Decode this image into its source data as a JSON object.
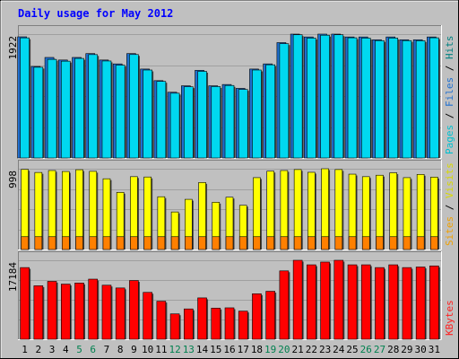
{
  "chart_data": {
    "title": "Daily usage for May 2012",
    "type": "bar",
    "categories": [
      "1",
      "2",
      "3",
      "4",
      "5",
      "6",
      "7",
      "8",
      "9",
      "10",
      "11",
      "12",
      "13",
      "14",
      "15",
      "16",
      "17",
      "18",
      "19",
      "20",
      "21",
      "22",
      "23",
      "24",
      "25",
      "26",
      "27",
      "28",
      "29",
      "30",
      "31"
    ],
    "weekend_days": [
      "5",
      "6",
      "12",
      "13",
      "19",
      "20",
      "26",
      "27"
    ],
    "panels": [
      {
        "label_parts": [
          "Pages",
          "Files",
          "Hits"
        ],
        "label_colors": [
          "#00c0d0",
          "#1f70d0",
          "#008080"
        ],
        "separator": " / ",
        "max_label": "1922",
        "max": 1922,
        "series": [
          {
            "key": "hits",
            "color": "#1f70d0",
            "values": [
              1880,
              1420,
              1560,
              1520,
              1560,
              1620,
              1520,
              1460,
              1620,
              1380,
              1200,
              1020,
              1120,
              1360,
              1120,
              1140,
              1080,
              1380,
              1460,
              1790,
              1922,
              1878,
              1922,
              1922,
              1878,
              1878,
              1834,
              1878,
              1834,
              1834,
              1878
            ]
          },
          {
            "key": "pages",
            "color": "#00d8f0",
            "values": [
              1864,
              1408,
              1530,
              1502,
              1545,
              1604,
              1505,
              1440,
              1605,
              1365,
              1188,
              1005,
              1105,
              1344,
              1108,
              1125,
              1063,
              1365,
              1446,
              1773,
              1912,
              1860,
              1905,
              1912,
              1865,
              1860,
              1821,
              1861,
              1821,
              1819,
              1865
            ]
          }
        ]
      },
      {
        "label_parts": [
          "Sites",
          "Visits"
        ],
        "label_colors": [
          "#f0a000",
          "#d8d800"
        ],
        "separator": " / ",
        "max_label": "998",
        "max": 998,
        "series": [
          {
            "key": "visits",
            "color": "#ffff00",
            "values": [
              990,
              952,
              976,
              964,
              986,
              966,
              874,
              706,
              900,
              896,
              652,
              464,
              620,
              828,
              584,
              646,
              546,
              888,
              968,
              976,
              988,
              954,
              998,
              988,
              931,
              900,
              918,
              948,
              888,
              928,
              894
            ]
          },
          {
            "key": "sites",
            "color": "#ff8000",
            "values": [
              158,
              158,
              158,
              158,
              158,
              158,
              158,
              158,
              158,
              158,
              158,
              158,
              158,
              158,
              158,
              158,
              158,
              158,
              158,
              158,
              158,
              158,
              158,
              158,
              158,
              158,
              158,
              158,
              158,
              158,
              158
            ]
          }
        ]
      },
      {
        "label_parts": [
          "KBytes"
        ],
        "label_colors": [
          "#ff2020"
        ],
        "separator": "",
        "max_label": "17184",
        "max": 17184,
        "series": [
          {
            "key": "kbytes",
            "color": "#ff0000",
            "values": [
              15600,
              11640,
              12600,
              12000,
              12240,
              13080,
              11760,
              11160,
              12780,
              10200,
              8280,
              5520,
              6600,
              9000,
              6780,
              6840,
              6120,
              9900,
              10440,
              14880,
              17184,
              16200,
              16800,
              17184,
              16200,
              16200,
              15600,
              16200,
              15600,
              15720,
              15960
            ]
          }
        ]
      }
    ],
    "colors": {
      "background": "#c0c0c0",
      "panel": "#c0c0c0",
      "gridline": "#a0a0a0",
      "title": "#0000ff",
      "weekday_label": "#000000",
      "weekend_label": "#00804f"
    }
  }
}
